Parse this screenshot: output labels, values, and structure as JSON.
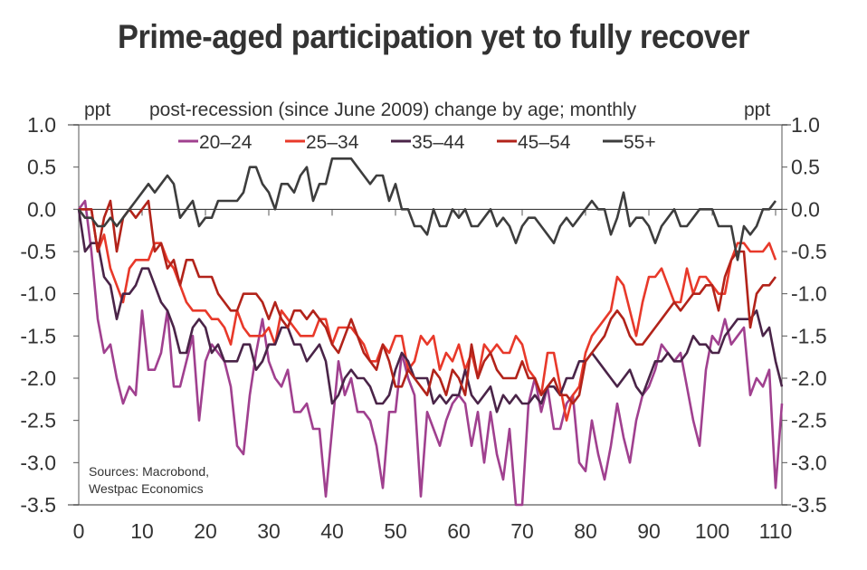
{
  "chart_data": {
    "type": "line",
    "title": "Prime-aged participation yet to fully recover",
    "subtitle": "post-recession (since June 2009) change by age; monthly",
    "ylabel_left": "ppt",
    "ylabel_right": "ppt",
    "xlabel": "",
    "xlim": [
      0,
      111
    ],
    "ylim": [
      -3.5,
      1.0
    ],
    "x_ticks": [
      "0",
      "10",
      "20",
      "30",
      "40",
      "50",
      "60",
      "70",
      "80",
      "90",
      "100",
      "110"
    ],
    "x_tick_values": [
      0,
      10,
      20,
      30,
      40,
      50,
      60,
      70,
      80,
      90,
      100,
      110
    ],
    "y_ticks": [
      "1.0",
      "0.5",
      "0.0",
      "-0.5",
      "-1.0",
      "-1.5",
      "-2.0",
      "-2.5",
      "-3.0",
      "-3.5"
    ],
    "y_tick_values": [
      1.0,
      0.5,
      0.0,
      -0.5,
      -1.0,
      -1.5,
      -2.0,
      -2.5,
      -3.0,
      -3.5
    ],
    "grid": false,
    "zero_line": true,
    "legend_position": "top-center",
    "annotation": [
      "Sources: Macrobond,",
      "Westpac Economics"
    ],
    "series": [
      {
        "name": "20–24",
        "color": "#a0408f",
        "values": [
          0,
          0.1,
          -0.5,
          -1.3,
          -1.7,
          -1.6,
          -2.0,
          -2.3,
          -2.1,
          -2.2,
          -1.2,
          -1.9,
          -1.9,
          -1.7,
          -1.2,
          -2.1,
          -2.1,
          -1.8,
          -1.5,
          -2.5,
          -1.8,
          -1.6,
          -1.7,
          -1.8,
          -2.1,
          -2.8,
          -2.9,
          -2.2,
          -1.7,
          -1.3,
          -1.8,
          -2.0,
          -2.1,
          -1.9,
          -2.4,
          -2.4,
          -2.3,
          -2.6,
          -2.6,
          -3.4,
          -2.6,
          -1.8,
          -2.2,
          -2.0,
          -2.4,
          -2.4,
          -2.5,
          -2.8,
          -3.3,
          -2.4,
          -2.4,
          -1.7,
          -2.0,
          -2.2,
          -3.4,
          -2.4,
          -2.6,
          -2.8,
          -2.5,
          -2.3,
          -2.2,
          -2.3,
          -2.8,
          -2.4,
          -3.0,
          -2.4,
          -2.9,
          -3.2,
          -2.6,
          -3.5,
          -3.5,
          -2.3,
          -2.0,
          -2.4,
          -2.1,
          -2.6,
          -2.6,
          -2.3,
          -2.2,
          -3.0,
          -3.1,
          -2.5,
          -2.9,
          -3.2,
          -2.8,
          -2.3,
          -2.7,
          -3.0,
          -2.5,
          -2.2,
          -2.1,
          -1.9,
          -1.6,
          -1.7,
          -1.8,
          -1.7,
          -2.1,
          -2.5,
          -2.8,
          -1.9,
          -1.5,
          -1.6,
          -1.3,
          -1.6,
          -1.5,
          -1.4,
          -2.2,
          -2.0,
          -2.1,
          -1.9,
          -3.3,
          -2.3
        ]
      },
      {
        "name": "25–34",
        "color": "#e8392a",
        "values": [
          0,
          0,
          0,
          -0.5,
          -0.3,
          -0.7,
          -0.9,
          -1.1,
          -0.7,
          -0.6,
          -0.6,
          -0.6,
          -0.4,
          -0.4,
          -0.6,
          -0.7,
          -0.9,
          -1.1,
          -1.2,
          -1.2,
          -1.2,
          -1.3,
          -1.3,
          -1.4,
          -1.6,
          -1.2,
          -1.4,
          -1.5,
          -1.5,
          -1.5,
          -1.4,
          -1.6,
          -1.2,
          -1.3,
          -1.4,
          -1.5,
          -1.5,
          -1.5,
          -1.3,
          -1.3,
          -1.6,
          -1.4,
          -1.4,
          -1.4,
          -1.5,
          -1.6,
          -1.8,
          -1.8,
          -1.6,
          -1.7,
          -1.5,
          -1.5,
          -1.9,
          -1.8,
          -1.5,
          -1.6,
          -1.5,
          -1.9,
          -1.7,
          -1.8,
          -1.6,
          -1.9,
          -1.7,
          -2.0,
          -1.6,
          -1.7,
          -1.6,
          -1.7,
          -1.7,
          -1.5,
          -1.6,
          -1.9,
          -2.0,
          -2.2,
          -1.7,
          -1.7,
          -2.1,
          -2.5,
          -2.2,
          -2.1,
          -1.7,
          -1.5,
          -1.4,
          -1.3,
          -1.2,
          -0.8,
          -0.9,
          -1.2,
          -1.5,
          -1.1,
          -0.8,
          -0.8,
          -0.7,
          -0.9,
          -1.1,
          -1.1,
          -0.7,
          -1.0,
          -0.8,
          -0.8,
          -0.9,
          -1.0,
          -1.0,
          -0.6,
          -0.4,
          -0.4,
          -0.5,
          -0.5,
          -0.5,
          -0.4,
          -0.6
        ]
      },
      {
        "name": "35–44",
        "color": "#4a2448",
        "values": [
          0,
          -0.5,
          -0.4,
          -0.4,
          -0.8,
          -0.9,
          -1.3,
          -1.0,
          -1.0,
          -0.9,
          -0.7,
          -0.7,
          -0.9,
          -1.1,
          -1.2,
          -1.4,
          -1.7,
          -1.7,
          -1.4,
          -1.3,
          -1.4,
          -1.7,
          -1.6,
          -1.8,
          -1.8,
          -1.8,
          -1.6,
          -1.6,
          -1.9,
          -1.8,
          -1.6,
          -1.6,
          -1.4,
          -1.4,
          -1.6,
          -1.6,
          -1.8,
          -1.7,
          -1.6,
          -1.8,
          -2.3,
          -2.2,
          -2.0,
          -1.9,
          -2.0,
          -2.0,
          -2.1,
          -2.3,
          -2.3,
          -2.2,
          -1.9,
          -1.7,
          -1.8,
          -2.0,
          -2.0,
          -2.0,
          -2.3,
          -2.2,
          -2.3,
          -2.2,
          -2.2,
          -1.9,
          -2.2,
          -2.3,
          -2.2,
          -2.1,
          -2.4,
          -2.2,
          -2.3,
          -2.2,
          -2.3,
          -2.3,
          -2.2,
          -2.3,
          -2.1,
          -2.1,
          -2.2,
          -2.0,
          -2.0,
          -1.8,
          -1.8,
          -1.7,
          -1.8,
          -1.9,
          -2.0,
          -2.1,
          -2.0,
          -1.9,
          -2.1,
          -2.2,
          -2.0,
          -1.8,
          -1.8,
          -1.7,
          -1.8,
          -1.8,
          -1.7,
          -1.5,
          -1.6,
          -1.6,
          -1.7,
          -1.7,
          -1.5,
          -1.4,
          -1.3,
          -1.3,
          -1.3,
          -1.2,
          -1.5,
          -1.4,
          -1.8,
          -2.1
        ]
      },
      {
        "name": "45–54",
        "color": "#b2231a",
        "values": [
          0,
          0,
          0,
          -0.5,
          -0.1,
          0.1,
          -0.5,
          -0.1,
          0,
          -0.1,
          0,
          0.1,
          -0.5,
          -0.4,
          -0.7,
          -0.6,
          -0.9,
          -0.6,
          -0.6,
          -0.8,
          -0.8,
          -0.8,
          -1.0,
          -1.1,
          -1.2,
          -1.2,
          -1.0,
          -1.0,
          -1.0,
          -1.1,
          -1.3,
          -1.1,
          -1.3,
          -1.4,
          -1.2,
          -1.2,
          -1.3,
          -1.2,
          -1.3,
          -1.4,
          -1.6,
          -1.7,
          -1.5,
          -1.3,
          -1.5,
          -1.7,
          -1.8,
          -1.9,
          -1.6,
          -1.8,
          -2.1,
          -2.1,
          -1.9,
          -2.0,
          -2.1,
          -2.2,
          -1.9,
          -2.0,
          -2.2,
          -1.9,
          -2.0,
          -2.2,
          -1.6,
          -2.0,
          -1.8,
          -1.7,
          -1.9,
          -2.0,
          -2.0,
          -2.0,
          -1.8,
          -2.0,
          -2.0,
          -2.2,
          -2.1,
          -2.0,
          -2.2,
          -2.2,
          -2.3,
          -2.2,
          -1.8,
          -1.7,
          -1.6,
          -1.5,
          -1.3,
          -1.2,
          -1.3,
          -1.5,
          -1.6,
          -1.6,
          -1.5,
          -1.4,
          -1.3,
          -1.2,
          -1.1,
          -1.2,
          -1.1,
          -1.0,
          -1.0,
          -0.9,
          -0.9,
          -1.2,
          -0.8,
          -0.6,
          -0.5,
          -0.5,
          -1.4,
          -1.0,
          -0.9,
          -0.9,
          -0.8
        ]
      },
      {
        "name": "55+",
        "color": "#3d3d3d",
        "values": [
          0,
          -0.1,
          -0.1,
          -0.2,
          -0.2,
          -0.1,
          -0.2,
          -0.1,
          0,
          0.1,
          0.2,
          0.3,
          0.2,
          0.3,
          0.4,
          0.3,
          -0.1,
          0,
          0.1,
          -0.2,
          -0.1,
          -0.1,
          0.1,
          0.1,
          0.1,
          0.1,
          0.2,
          0.5,
          0.5,
          0.3,
          0.2,
          0,
          0.3,
          0.3,
          0.2,
          0.4,
          0.5,
          0.1,
          0.3,
          0.3,
          0.6,
          0.6,
          0.6,
          0.6,
          0.5,
          0.4,
          0.3,
          0.4,
          0.4,
          0.1,
          0.3,
          0,
          0,
          -0.2,
          -0.2,
          -0.3,
          0,
          -0.2,
          -0.2,
          0,
          -0.1,
          0,
          -0.2,
          -0.2,
          -0.1,
          0,
          -0.2,
          -0.1,
          -0.2,
          -0.4,
          -0.2,
          -0.1,
          -0.1,
          -0.2,
          -0.3,
          -0.4,
          -0.2,
          -0.1,
          -0.2,
          -0.1,
          0,
          0.1,
          0,
          0,
          -0.3,
          -0.1,
          0.2,
          -0.2,
          -0.1,
          -0.1,
          -0.2,
          -0.4,
          -0.2,
          -0.1,
          0,
          -0.2,
          -0.2,
          -0.1,
          0,
          0,
          0,
          -0.2,
          -0.2,
          -0.2,
          -0.6,
          -0.2,
          -0.3,
          -0.2,
          0,
          0,
          0.1
        ]
      }
    ]
  }
}
